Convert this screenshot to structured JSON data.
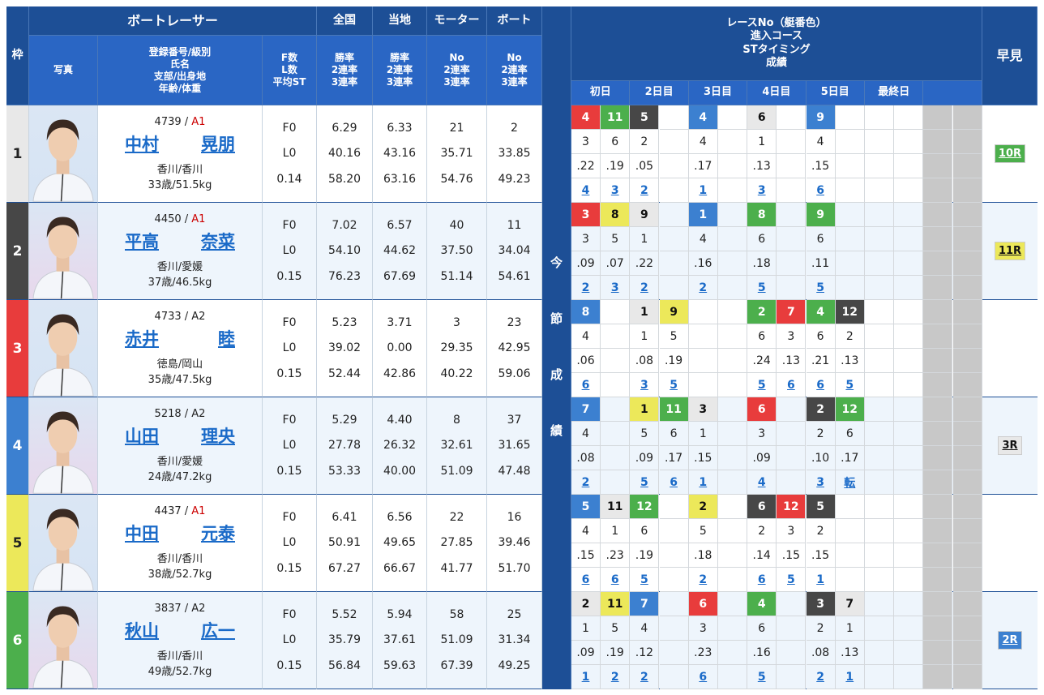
{
  "header": {
    "waku": "枠",
    "racer": "ボートレーサー",
    "zenkoku": "全国",
    "touchi": "当地",
    "motor": "モーター",
    "boat": "ボート",
    "photo": "写真",
    "racer_info": [
      "登録番号/級別",
      "氏名",
      "支部/出身地",
      "年齢/体重"
    ],
    "fl": [
      "F数",
      "L数",
      "平均ST"
    ],
    "rates": [
      "勝率",
      "2連率",
      "3連率"
    ],
    "motor_cols": [
      "No",
      "2連率",
      "3連率"
    ],
    "boat_cols": [
      "No",
      "2連率",
      "3連率"
    ],
    "konsetsu": "今節成績",
    "race_info": [
      "レースNo（艇番色）",
      "進入コース",
      "STタイミング",
      "成績"
    ],
    "days": [
      "初日",
      "2日目",
      "3日目",
      "4日目",
      "5日目",
      "最終日",
      ""
    ],
    "hayami": "早見"
  },
  "colors": {
    "1": "#e8e8e8",
    "2": "#474747",
    "3": "#e83c3c",
    "4": "#3c80d0",
    "5": "#ece85a",
    "6": "#4caf4c",
    "header": "#1d4f96",
    "subheader": "#2a66c4",
    "link": "#1a6ac8"
  },
  "racers": [
    {
      "waku": "1",
      "reg": "4739",
      "cls": "A1",
      "family": "中村",
      "given": "晃朋",
      "branch": "香川/香川",
      "age": "33歳/51.5kg",
      "f": "F0",
      "l": "L0",
      "st": "0.14",
      "zenkoku": [
        "6.29",
        "40.16",
        "58.20"
      ],
      "touchi": [
        "6.33",
        "43.16",
        "63.16"
      ],
      "motor": [
        "21",
        "35.71",
        "54.76"
      ],
      "boat": [
        "2",
        "33.85",
        "49.23"
      ],
      "hayami": "10R",
      "hayami_color": "6",
      "races": [
        [
          "4",
          "3",
          ".22",
          "4"
        ],
        [
          "11",
          "6",
          ".19",
          "3"
        ],
        [
          "5",
          "2",
          ".05",
          "2"
        ],
        null,
        [
          "4",
          "4",
          ".17",
          "1"
        ],
        null,
        [
          "6",
          "1",
          ".13",
          "3"
        ],
        null,
        [
          "9",
          "4",
          ".15",
          "6"
        ],
        null,
        null,
        null
      ]
    },
    {
      "waku": "2",
      "reg": "4450",
      "cls": "A1",
      "family": "平高",
      "given": "奈菜",
      "branch": "香川/愛媛",
      "age": "37歳/46.5kg",
      "f": "F0",
      "l": "L0",
      "st": "0.15",
      "zenkoku": [
        "7.02",
        "54.10",
        "76.23"
      ],
      "touchi": [
        "6.57",
        "44.62",
        "67.69"
      ],
      "motor": [
        "40",
        "37.50",
        "51.14"
      ],
      "boat": [
        "11",
        "34.04",
        "54.61"
      ],
      "hayami": "11R",
      "hayami_color": "5",
      "races": [
        [
          "3",
          "3",
          ".09",
          "2"
        ],
        [
          "8",
          "5",
          ".07",
          "3"
        ],
        [
          "9",
          "1",
          ".22",
          "2"
        ],
        null,
        [
          "1",
          "4",
          ".16",
          "2"
        ],
        null,
        [
          "8",
          "6",
          ".18",
          "5"
        ],
        null,
        [
          "9",
          "6",
          ".11",
          "5"
        ],
        null,
        null,
        null
      ]
    },
    {
      "waku": "3",
      "reg": "4733",
      "cls": "A2",
      "family": "赤井",
      "given": "睦",
      "branch": "徳島/岡山",
      "age": "35歳/47.5kg",
      "f": "F0",
      "l": "L0",
      "st": "0.15",
      "zenkoku": [
        "5.23",
        "39.02",
        "52.44"
      ],
      "touchi": [
        "3.71",
        "0.00",
        "42.86"
      ],
      "motor": [
        "3",
        "29.35",
        "40.22"
      ],
      "boat": [
        "23",
        "42.95",
        "59.06"
      ],
      "hayami": "",
      "hayami_color": "",
      "races": [
        [
          "8",
          "4",
          ".06",
          "6"
        ],
        null,
        [
          "1",
          "1",
          ".08",
          "3"
        ],
        [
          "9",
          "5",
          ".19",
          "5"
        ],
        null,
        null,
        [
          "2",
          "6",
          ".24",
          "5"
        ],
        [
          "7",
          "3",
          ".13",
          "6"
        ],
        [
          "4",
          "6",
          ".21",
          "6"
        ],
        [
          "12",
          "2",
          ".13",
          "5"
        ],
        null,
        null
      ]
    },
    {
      "waku": "4",
      "reg": "5218",
      "cls": "A2",
      "family": "山田",
      "given": "理央",
      "branch": "香川/愛媛",
      "age": "24歳/47.2kg",
      "f": "F0",
      "l": "L0",
      "st": "0.15",
      "zenkoku": [
        "5.29",
        "27.78",
        "53.33"
      ],
      "touchi": [
        "4.40",
        "26.32",
        "40.00"
      ],
      "motor": [
        "8",
        "32.61",
        "51.09"
      ],
      "boat": [
        "37",
        "31.65",
        "47.48"
      ],
      "hayami": "3R",
      "hayami_color": "1",
      "races": [
        [
          "7",
          "4",
          ".08",
          "2"
        ],
        null,
        [
          "1",
          "5",
          ".09",
          "5"
        ],
        [
          "11",
          "6",
          ".17",
          "6"
        ],
        [
          "3",
          "1",
          ".15",
          "1"
        ],
        null,
        [
          "6",
          "3",
          ".09",
          "4"
        ],
        null,
        [
          "2",
          "2",
          ".10",
          "3"
        ],
        [
          "12",
          "6",
          ".17",
          "転"
        ],
        null,
        null
      ]
    },
    {
      "waku": "5",
      "reg": "4437",
      "cls": "A1",
      "family": "中田",
      "given": "元泰",
      "branch": "香川/香川",
      "age": "38歳/52.7kg",
      "f": "F0",
      "l": "L0",
      "st": "0.15",
      "zenkoku": [
        "6.41",
        "50.91",
        "67.27"
      ],
      "touchi": [
        "6.56",
        "49.65",
        "66.67"
      ],
      "motor": [
        "22",
        "27.85",
        "41.77"
      ],
      "boat": [
        "16",
        "39.46",
        "51.70"
      ],
      "hayami": "",
      "hayami_color": "",
      "races": [
        [
          "5",
          "4",
          ".15",
          "6"
        ],
        [
          "11",
          "1",
          ".23",
          "6"
        ],
        [
          "12",
          "6",
          ".19",
          "5"
        ],
        null,
        [
          "2",
          "5",
          ".18",
          "2"
        ],
        null,
        [
          "6",
          "2",
          ".14",
          "6"
        ],
        [
          "12",
          "3",
          ".15",
          "5"
        ],
        [
          "5",
          "2",
          ".15",
          "1"
        ],
        null,
        null,
        null
      ]
    },
    {
      "waku": "6",
      "reg": "3837",
      "cls": "A2",
      "family": "秋山",
      "given": "広一",
      "branch": "香川/香川",
      "age": "49歳/52.7kg",
      "f": "F0",
      "l": "L0",
      "st": "0.15",
      "zenkoku": [
        "5.52",
        "35.79",
        "56.84"
      ],
      "touchi": [
        "5.94",
        "37.61",
        "59.63"
      ],
      "motor": [
        "58",
        "51.09",
        "67.39"
      ],
      "boat": [
        "25",
        "31.34",
        "49.25"
      ],
      "hayami": "2R",
      "hayami_color": "4",
      "races": [
        [
          "2",
          "1",
          ".09",
          "1"
        ],
        [
          "11",
          "5",
          ".19",
          "2"
        ],
        [
          "7",
          "4",
          ".12",
          "2"
        ],
        null,
        [
          "6",
          "3",
          ".23",
          "6"
        ],
        null,
        [
          "4",
          "6",
          ".16",
          "5"
        ],
        null,
        [
          "3",
          "2",
          ".08",
          "2"
        ],
        [
          "7",
          "1",
          ".13",
          "1"
        ],
        null,
        null
      ]
    }
  ]
}
